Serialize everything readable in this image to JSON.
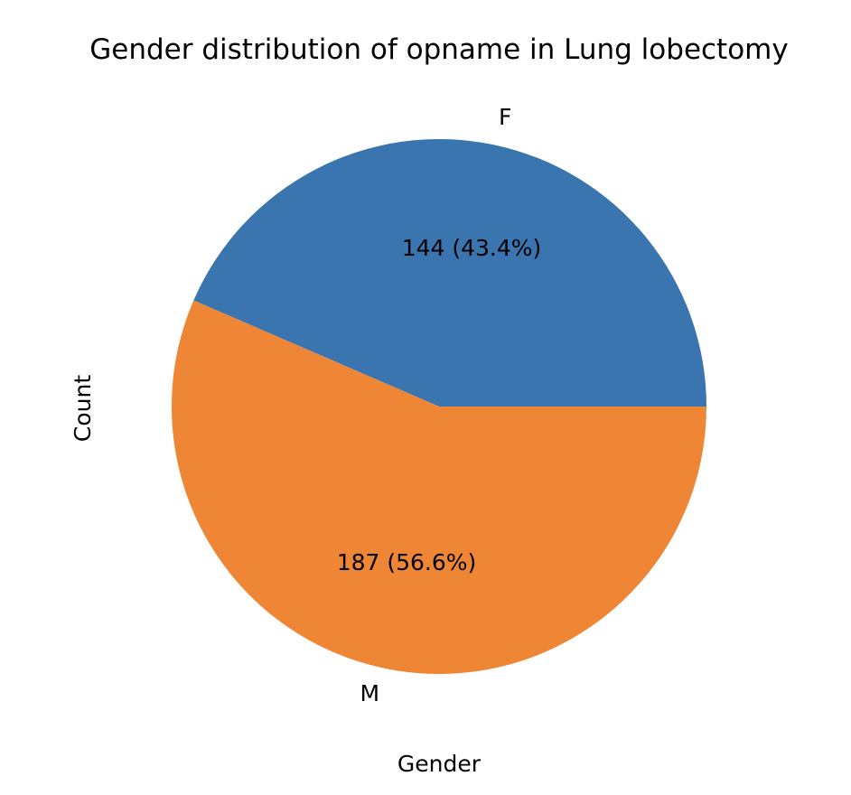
{
  "chart_data": {
    "type": "pie",
    "title": "Gender distribution of opname in Lung lobectomy",
    "xlabel": "Gender",
    "ylabel": "Count",
    "slices": [
      {
        "label": "F",
        "value": 144,
        "percent": 43.4,
        "color": "#3b75af",
        "pct_label": "144 (43.4%)"
      },
      {
        "label": "M",
        "value": 187,
        "percent": 56.6,
        "color": "#ef8636",
        "pct_label": "187 (56.6%)"
      }
    ],
    "start_angle_deg": 0,
    "direction": "counterclockwise",
    "legend": "none"
  }
}
